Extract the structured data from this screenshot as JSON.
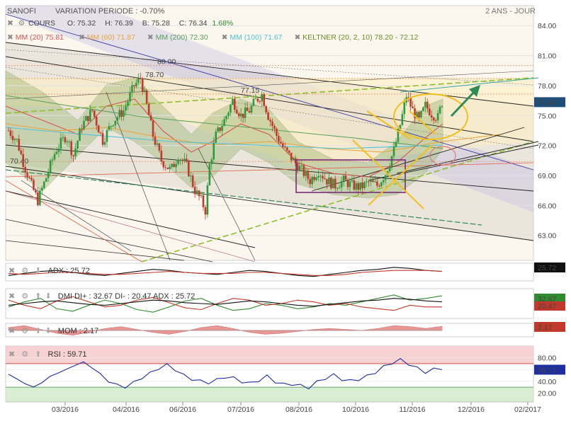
{
  "header": {
    "symbol": "SANOFI",
    "variation": "VARIATION PERIODE : -0.70%",
    "period": "2 ANS - JOUR"
  },
  "quote": {
    "cours_label": "COURS",
    "open": "O: 75.32",
    "high": "H: 76.39",
    "low": "B: 75.28",
    "close": "C: 76.34",
    "change": "1.68%"
  },
  "indicators": [
    {
      "label": "MM (20) 75.81",
      "color": "#d9534f"
    },
    {
      "label": "MM (60) 71.87",
      "color": "#e8a33a"
    },
    {
      "label": "MM (200) 72.30",
      "color": "#5aa05a"
    },
    {
      "label": "MM (100) 71.67",
      "color": "#4fc3d9"
    },
    {
      "label": "KELTNER (20, 2, 10) 78.20 - 72.12",
      "color": "#6a8f2a"
    }
  ],
  "chart_data": [
    {
      "type": "candlestick",
      "name": "price",
      "x_ticks": [
        "03/2016",
        "04/2016",
        "06/2016",
        "07/2016",
        "08/2016",
        "10/2016",
        "11/2016",
        "12/2016",
        "02/2017"
      ],
      "y_ticks": [
        84.0,
        81.0,
        78.0,
        75.0,
        72.0,
        69.0,
        66.0,
        63.0
      ],
      "ylim": [
        60.5,
        86.0
      ],
      "last_price": 76.34,
      "levels": [
        {
          "value": 80.0,
          "label": "80.00",
          "color": "#e06a3a"
        },
        {
          "value": 78.7,
          "label": "78.70",
          "color": "#e06a3a"
        },
        {
          "value": 77.15,
          "label": "77.15",
          "color": "#e06a3a"
        },
        {
          "value": 70.4,
          "label": "70.40",
          "color": "#e06a3a"
        }
      ],
      "key_points": [
        [
          0,
          73.5
        ],
        [
          8,
          72.5
        ],
        [
          15,
          70.0
        ],
        [
          22,
          68.0
        ],
        [
          28,
          66.5
        ],
        [
          35,
          68.5
        ],
        [
          45,
          71.5
        ],
        [
          55,
          73.0
        ],
        [
          62,
          71.0
        ],
        [
          70,
          74.0
        ],
        [
          80,
          75.5
        ],
        [
          90,
          72.5
        ],
        [
          100,
          74.5
        ],
        [
          110,
          75.5
        ],
        [
          120,
          78.0
        ],
        [
          126,
          78.7
        ],
        [
          130,
          77.0
        ],
        [
          138,
          73.0
        ],
        [
          146,
          70.5
        ],
        [
          155,
          69.5
        ],
        [
          162,
          71.0
        ],
        [
          170,
          70.0
        ],
        [
          178,
          67.5
        ],
        [
          184,
          66.5
        ],
        [
          188,
          65.5
        ],
        [
          192,
          70.0
        ],
        [
          198,
          73.0
        ],
        [
          206,
          74.5
        ],
        [
          214,
          76.5
        ],
        [
          222,
          75.0
        ],
        [
          230,
          75.5
        ],
        [
          236,
          76.5
        ],
        [
          242,
          77.1
        ],
        [
          248,
          75.0
        ],
        [
          256,
          73.0
        ],
        [
          264,
          71.5
        ],
        [
          272,
          70.5
        ],
        [
          280,
          69.5
        ],
        [
          288,
          68.5
        ],
        [
          296,
          69.5
        ],
        [
          304,
          68.5
        ],
        [
          312,
          68.0
        ],
        [
          320,
          68.5
        ],
        [
          328,
          68.0
        ],
        [
          336,
          67.8
        ],
        [
          344,
          68.3
        ],
        [
          352,
          68.0
        ],
        [
          360,
          69.2
        ],
        [
          368,
          71.5
        ],
        [
          375,
          74.5
        ],
        [
          380,
          77.0
        ],
        [
          386,
          75.5
        ],
        [
          392,
          74.5
        ],
        [
          398,
          76.0
        ],
        [
          404,
          75.2
        ],
        [
          410,
          74.8
        ],
        [
          414,
          76.34
        ]
      ]
    },
    {
      "type": "line",
      "name": "ADX",
      "label": "ADX : 25.72",
      "last_value": "25.72",
      "series": [
        {
          "name": "ADX",
          "color": "#111111",
          "values": [
            22,
            24,
            26,
            27,
            25,
            23,
            22,
            24,
            26,
            28,
            27,
            25,
            24,
            23,
            25,
            27,
            26,
            24,
            22,
            21,
            23,
            25,
            27,
            28,
            30,
            29,
            27,
            26
          ]
        },
        {
          "name": "signal",
          "color": "#c0392b",
          "values": [
            24,
            23,
            24,
            25,
            25,
            24,
            23,
            23,
            24,
            25,
            26,
            25,
            24,
            24,
            24,
            25,
            25,
            24,
            23,
            22,
            22,
            23,
            25,
            26,
            27,
            27,
            27,
            26
          ]
        }
      ]
    },
    {
      "type": "line",
      "name": "DMI",
      "label": "DMI DI+ : 32.67 DI- : 20.47 ADX : 25.72",
      "last_values": [
        "32.67",
        "20.47"
      ],
      "series": [
        {
          "name": "DI+",
          "color": "#2e8b2e",
          "values": [
            20,
            26,
            30,
            18,
            15,
            22,
            28,
            24,
            17,
            14,
            20,
            27,
            30,
            22,
            16,
            18,
            24,
            22,
            18,
            20,
            24,
            22,
            26,
            30,
            34,
            28,
            30,
            33
          ]
        },
        {
          "name": "DI-",
          "color": "#c0392b",
          "values": [
            28,
            22,
            18,
            27,
            32,
            26,
            20,
            22,
            28,
            31,
            25,
            19,
            17,
            24,
            30,
            28,
            22,
            24,
            28,
            26,
            22,
            24,
            20,
            18,
            16,
            22,
            20,
            20
          ]
        },
        {
          "name": "ADX",
          "color": "#111111",
          "values": [
            22,
            24,
            26,
            27,
            25,
            23,
            22,
            24,
            26,
            28,
            27,
            25,
            24,
            23,
            25,
            27,
            26,
            24,
            22,
            21,
            23,
            25,
            27,
            28,
            30,
            29,
            27,
            26
          ]
        }
      ]
    },
    {
      "type": "area",
      "name": "MOM",
      "label": "MOM : 2.17",
      "last_value": "2.17",
      "values": [
        1.5,
        2.5,
        0.5,
        -1.5,
        -2.5,
        -1.0,
        1.0,
        2.0,
        0.5,
        -1.0,
        -2.0,
        -0.5,
        1.5,
        2.5,
        1.0,
        -1.0,
        -2.0,
        -1.5,
        -0.5,
        0.5,
        1.0,
        0.5,
        0.0,
        1.0,
        2.5,
        2.0,
        1.0,
        2.17
      ]
    },
    {
      "type": "line",
      "name": "RSI",
      "label": "RSI : 59.71",
      "last_value": "59.71",
      "y_ticks": [
        80.0,
        60.0,
        40.0,
        20.0
      ],
      "ylim": [
        5,
        100
      ],
      "overbought": 70,
      "oversold": 30,
      "values": [
        52,
        44,
        36,
        30,
        38,
        48,
        55,
        60,
        68,
        72,
        64,
        52,
        40,
        34,
        30,
        38,
        46,
        54,
        62,
        68,
        60,
        50,
        44,
        40,
        38,
        42,
        48,
        45,
        40,
        36,
        42,
        48,
        40,
        34,
        36,
        32,
        30,
        38,
        46,
        50,
        44,
        40,
        44,
        48,
        56,
        64,
        72,
        76,
        70,
        62,
        56,
        60,
        59.71
      ]
    }
  ]
}
